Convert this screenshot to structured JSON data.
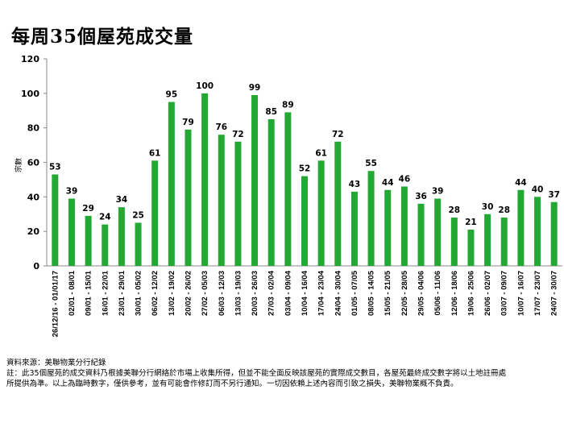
{
  "title": "每周35個屋苑成交量",
  "chart_data": {
    "type": "bar",
    "title": "每周35個屋苑成交量",
    "ylabel": "宗數",
    "xlabel": "",
    "ylim": [
      0,
      120
    ],
    "yticks": [
      0,
      20,
      40,
      60,
      80,
      100,
      120
    ],
    "color": "#22a833",
    "categories": [
      "26/12/16 - 01/01/17",
      "02/01 - 08/01",
      "09/01 - 15/01",
      "16/01 - 22/01",
      "23/01 - 29/01",
      "30/01 - 05/02",
      "06/02 - 12/02",
      "13/02 - 19/02",
      "20/02 - 26/02",
      "27/02 - 05/03",
      "06/03 - 12/03",
      "13/03 - 19/03",
      "20/03 - 26/03",
      "27/03 - 02/04",
      "03/04 - 09/04",
      "10/04 - 16/04",
      "17/04 - 23/04",
      "24/04 - 30/04",
      "01/05 - 07/05",
      "08/05 - 14/05",
      "15/05 - 21/05",
      "22/05 - 28/05",
      "29/05 - 04/06",
      "05/06 - 11/06",
      "12/06 - 18/06",
      "19/06 - 25/06",
      "26/06 - 02/07",
      "03/07 - 09/07",
      "10/07 - 16/07",
      "17/07 - 23/07",
      "24/07 - 30/07"
    ],
    "values": [
      53,
      39,
      29,
      24,
      34,
      25,
      61,
      95,
      79,
      100,
      76,
      72,
      99,
      85,
      89,
      52,
      61,
      72,
      43,
      55,
      44,
      46,
      36,
      39,
      28,
      21,
      30,
      28,
      44,
      40,
      37
    ]
  },
  "footer": {
    "source": "資料來源：美聯物業分行紀錄",
    "note1": "註：此35個屋苑的成交資料乃根據美聯分行網絡於市場上收集所得，但並不能全面反映該屋苑的實際成交數目，各屋苑最終成交數字將以土地註冊處",
    "note2": "所提供為準。以上為臨時數字，僅供參考，並有可能會作修訂而不另行通知。一切因依賴上述內容而引致之損失，美聯物業概不負責。"
  }
}
